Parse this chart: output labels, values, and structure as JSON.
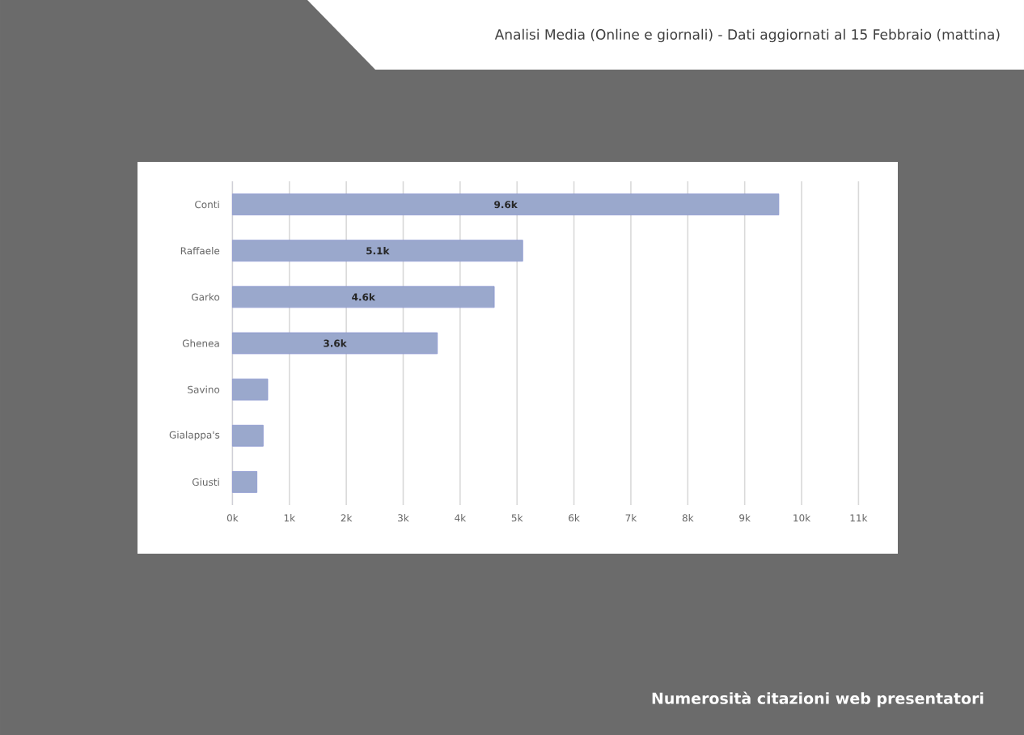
{
  "chart_data": {
    "type": "bar",
    "orientation": "horizontal",
    "title": "Analisi Media (Online e giornali) - Dati aggiornati al 15 Febbraio (mattina)",
    "subtitle": "Numerosità citazioni web presentatori",
    "categories": [
      "Conti",
      "Raffaele",
      "Garko",
      "Ghenea",
      "Savino",
      "Gialappa's",
      "Giusti"
    ],
    "values": [
      9.6,
      5.1,
      4.6,
      3.6,
      0.62,
      0.54,
      0.43
    ],
    "value_labels": [
      "9.6k",
      "5.1k",
      "4.6k",
      "3.6k",
      null,
      null,
      null
    ],
    "color": "#9aa8cc",
    "xlim": [
      0,
      11
    ],
    "xticks": [
      {
        "value": 0,
        "label": "0k"
      },
      {
        "value": 1,
        "label": "1k"
      },
      {
        "value": 2,
        "label": "2k"
      },
      {
        "value": 3,
        "label": "3k"
      },
      {
        "value": 4,
        "label": "4k"
      },
      {
        "value": 5,
        "label": "5k"
      },
      {
        "value": 6,
        "label": "6k"
      },
      {
        "value": 7,
        "label": "7k"
      },
      {
        "value": 8,
        "label": "8k"
      },
      {
        "value": 9,
        "label": "9k"
      },
      {
        "value": 10,
        "label": "10k"
      },
      {
        "value": 11,
        "label": "11k"
      }
    ],
    "grid": "x"
  }
}
